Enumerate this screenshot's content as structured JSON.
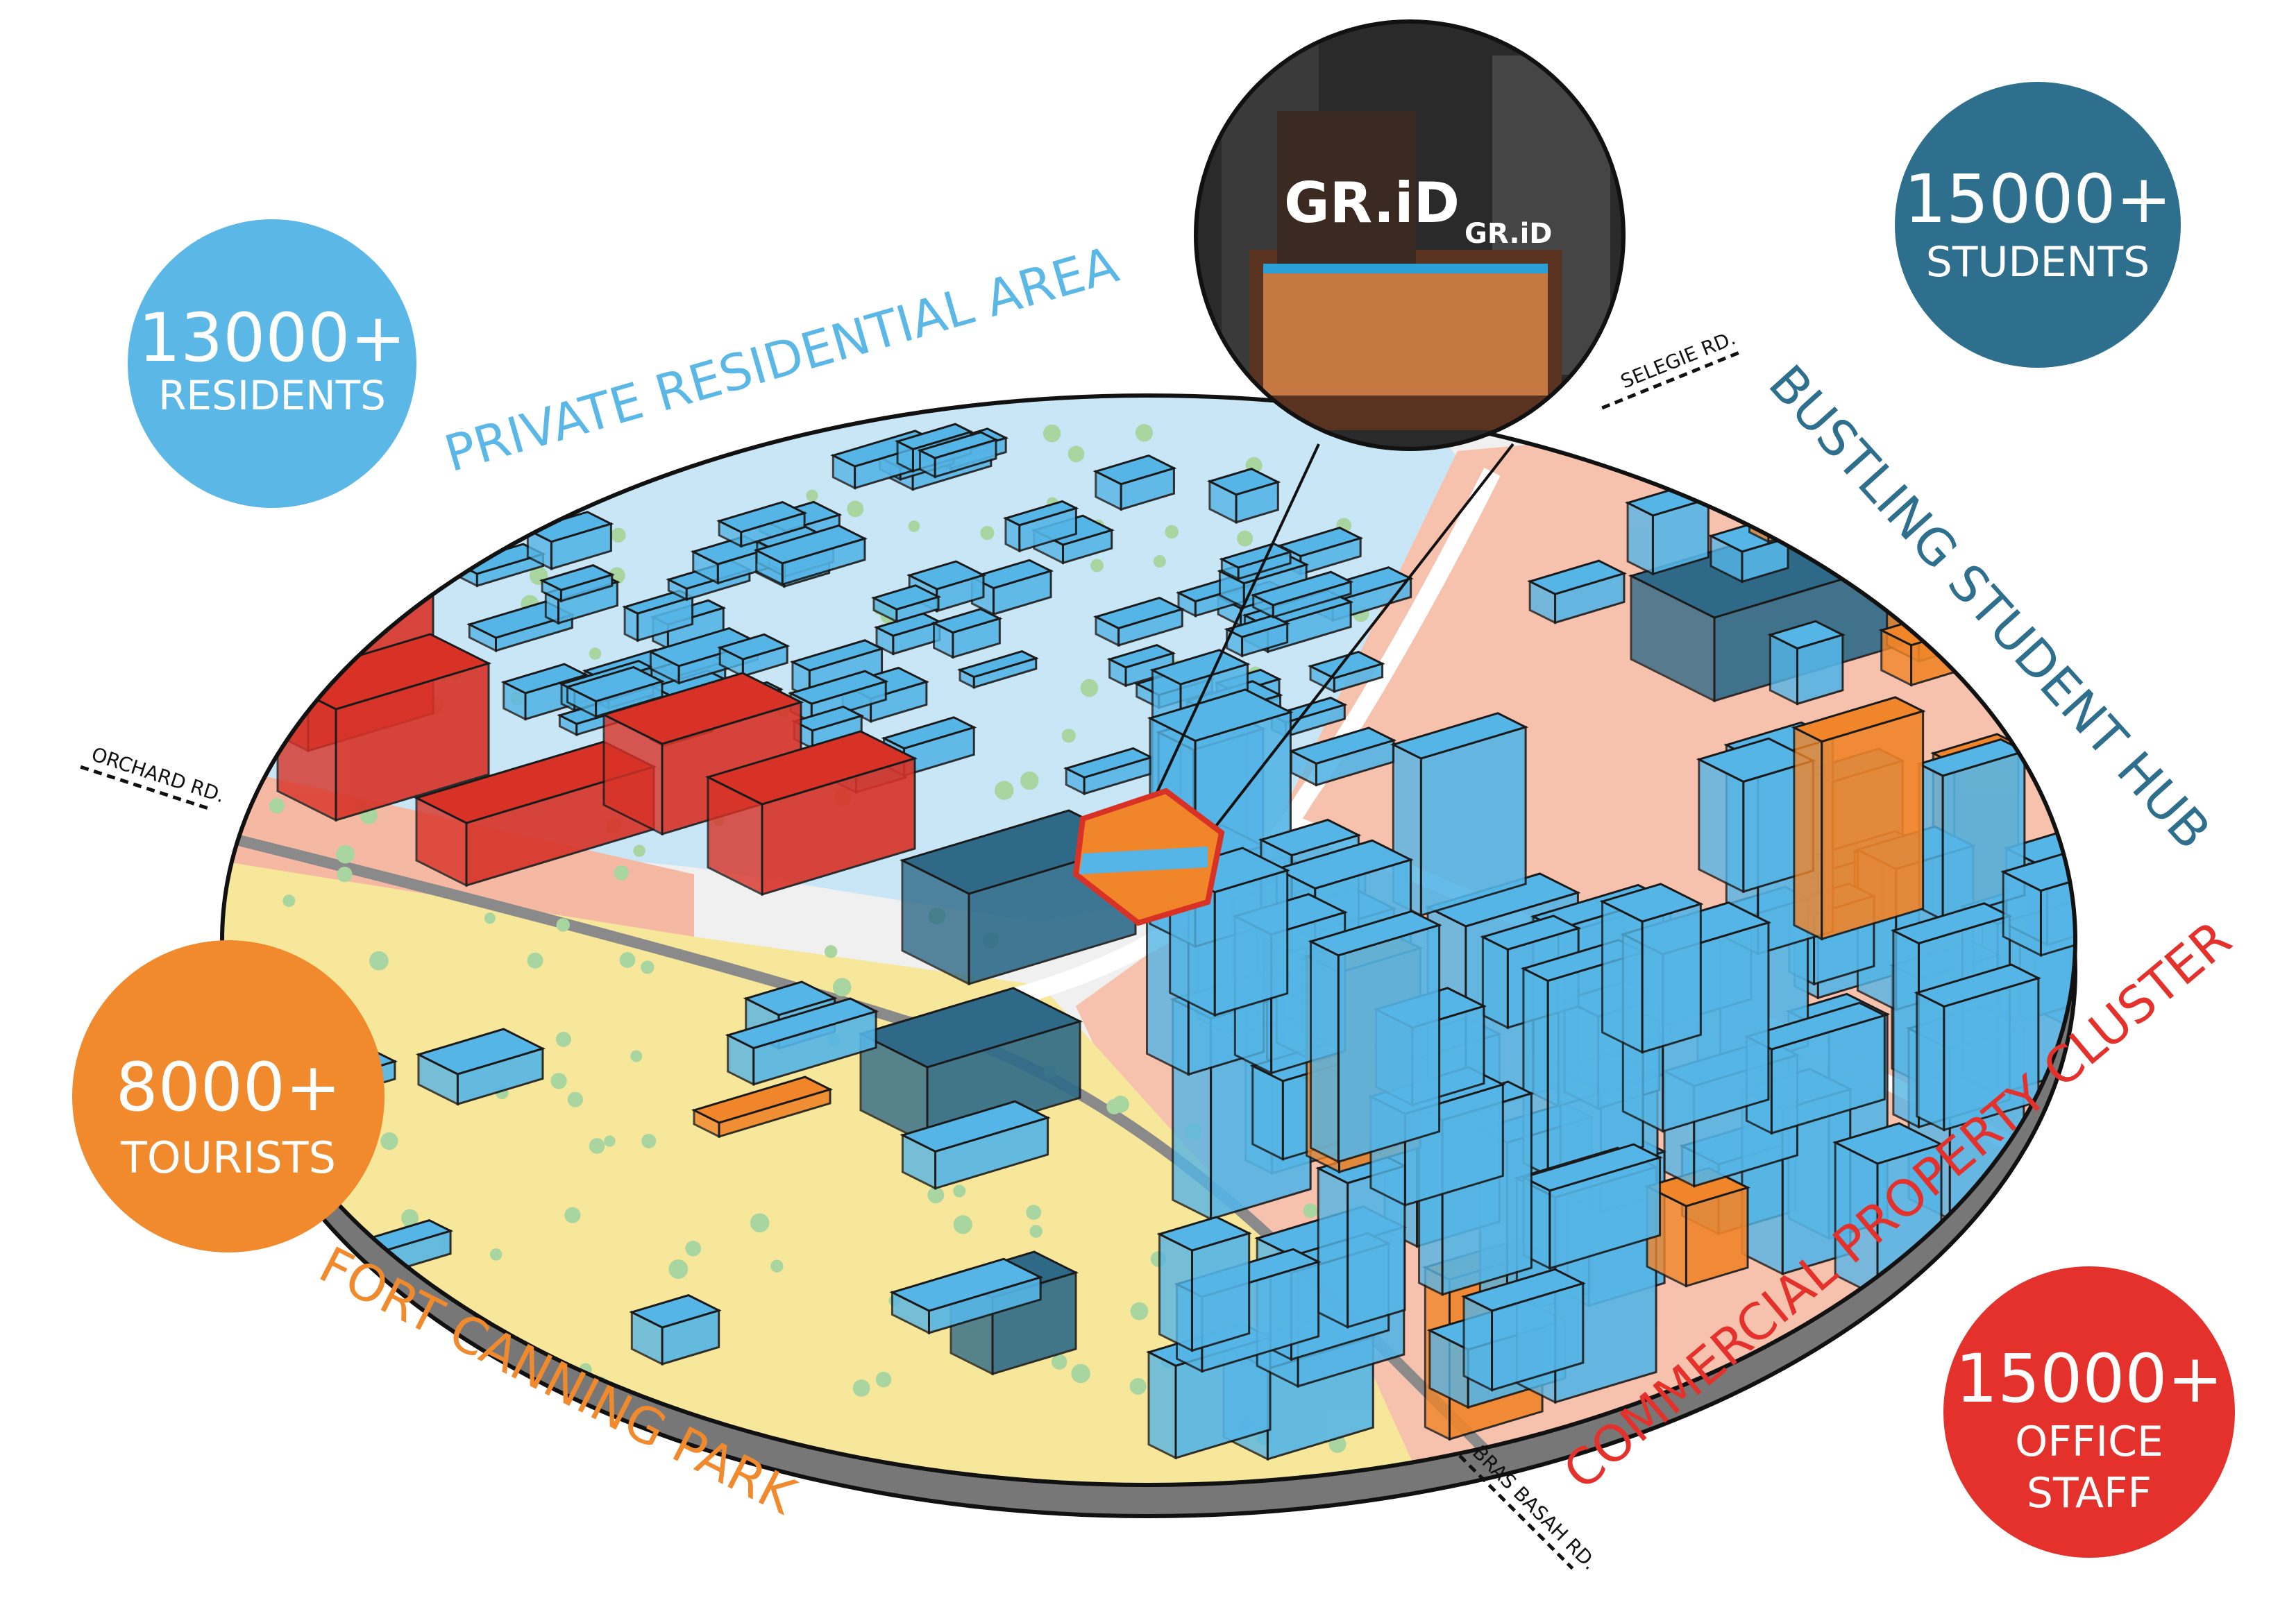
{
  "stats": {
    "residents": {
      "number": "13000+",
      "label": "RESIDENTS",
      "color": "#5bb8e6"
    },
    "students": {
      "number": "15000+",
      "label": "STUDENTS",
      "color": "#2e6f8e"
    },
    "tourists": {
      "number": "8000+",
      "label": "TOURISTS",
      "color": "#f08a2c"
    },
    "office": {
      "number": "15000+",
      "label_line1": "OFFICE",
      "label_line2": "STAFF",
      "color": "#e4312b"
    }
  },
  "zones": {
    "residential": {
      "label": "PRIVATE RESIDENTIAL AREA",
      "color": "#5bb8e6"
    },
    "student_hub": {
      "label": "BUSTLING STUDENT HUB",
      "color": "#2e6f8e"
    },
    "commercial": {
      "label": "COMMERCIAL PROPERTY CLUSTER",
      "color": "#e4312b"
    },
    "park": {
      "label": "FORT CANNING PARK",
      "color": "#f08a2c"
    }
  },
  "roads": {
    "orchard": "ORCHARD RD.",
    "selegie": "SELEGIE RD.",
    "bras_basah": "BRAS BASAH RD."
  },
  "inset": {
    "sign_text": "GR.iD"
  },
  "colors": {
    "building_blue": "#55b5e6",
    "building_dark": "#2e6a88",
    "building_red": "#d83227",
    "building_orange": "#f0852a",
    "zone_residential": "#c9e6f6",
    "zone_commercial": "#f7c2ad",
    "zone_park": "#f7e79a",
    "disc_edge": "#777777"
  }
}
